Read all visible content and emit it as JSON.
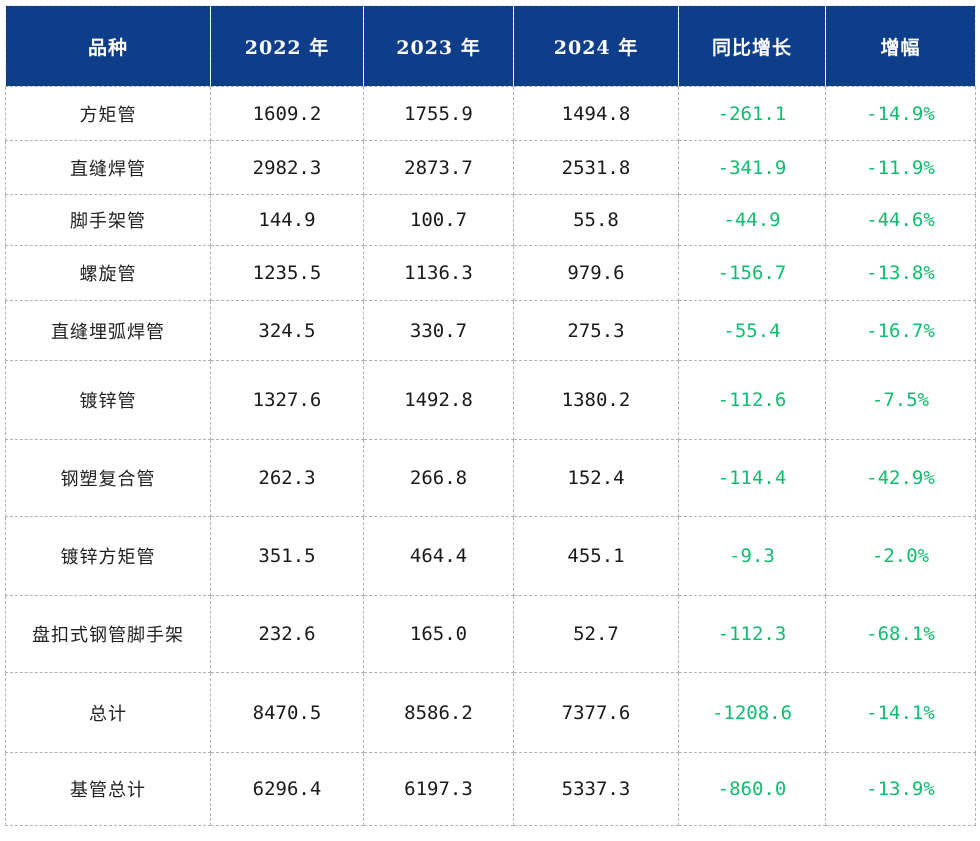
{
  "colors": {
    "header_bg": "#0e3e8a",
    "header_text": "#ffffff",
    "body_text": "#1a1a1a",
    "negative_green": "#10bd6e",
    "border_dashed": "#b3b3b3"
  },
  "chart_data": {
    "type": "table",
    "columns": [
      "品种",
      "2022 年",
      "2023 年",
      "2024 年",
      "同比增长",
      "增幅"
    ],
    "rows": [
      [
        "方矩管",
        "1609.2",
        "1755.9",
        "1494.8",
        "-261.1",
        "-14.9%"
      ],
      [
        "直缝焊管",
        "2982.3",
        "2873.7",
        "2531.8",
        "-341.9",
        "-11.9%"
      ],
      [
        "脚手架管",
        "144.9",
        "100.7",
        "55.8",
        "-44.9",
        "-44.6%"
      ],
      [
        "螺旋管",
        "1235.5",
        "1136.3",
        "979.6",
        "-156.7",
        "-13.8%"
      ],
      [
        "直缝埋弧焊管",
        "324.5",
        "330.7",
        "275.3",
        "-55.4",
        "-16.7%"
      ],
      [
        "镀锌管",
        "1327.6",
        "1492.8",
        "1380.2",
        "-112.6",
        "-7.5%"
      ],
      [
        "钢塑复合管",
        "262.3",
        "266.8",
        "152.4",
        "-114.4",
        "-42.9%"
      ],
      [
        "镀锌方矩管",
        "351.5",
        "464.4",
        "455.1",
        "-9.3",
        "-2.0%"
      ],
      [
        "盘扣式钢管脚手架",
        "232.6",
        "165.0",
        "52.7",
        "-112.3",
        "-68.1%"
      ],
      [
        "总计",
        "8470.5",
        "8586.2",
        "7377.6",
        "-1208.6",
        "-14.1%"
      ],
      [
        "基管总计",
        "6296.4",
        "6197.3",
        "5337.3",
        "-860.0",
        "-13.9%"
      ]
    ]
  }
}
